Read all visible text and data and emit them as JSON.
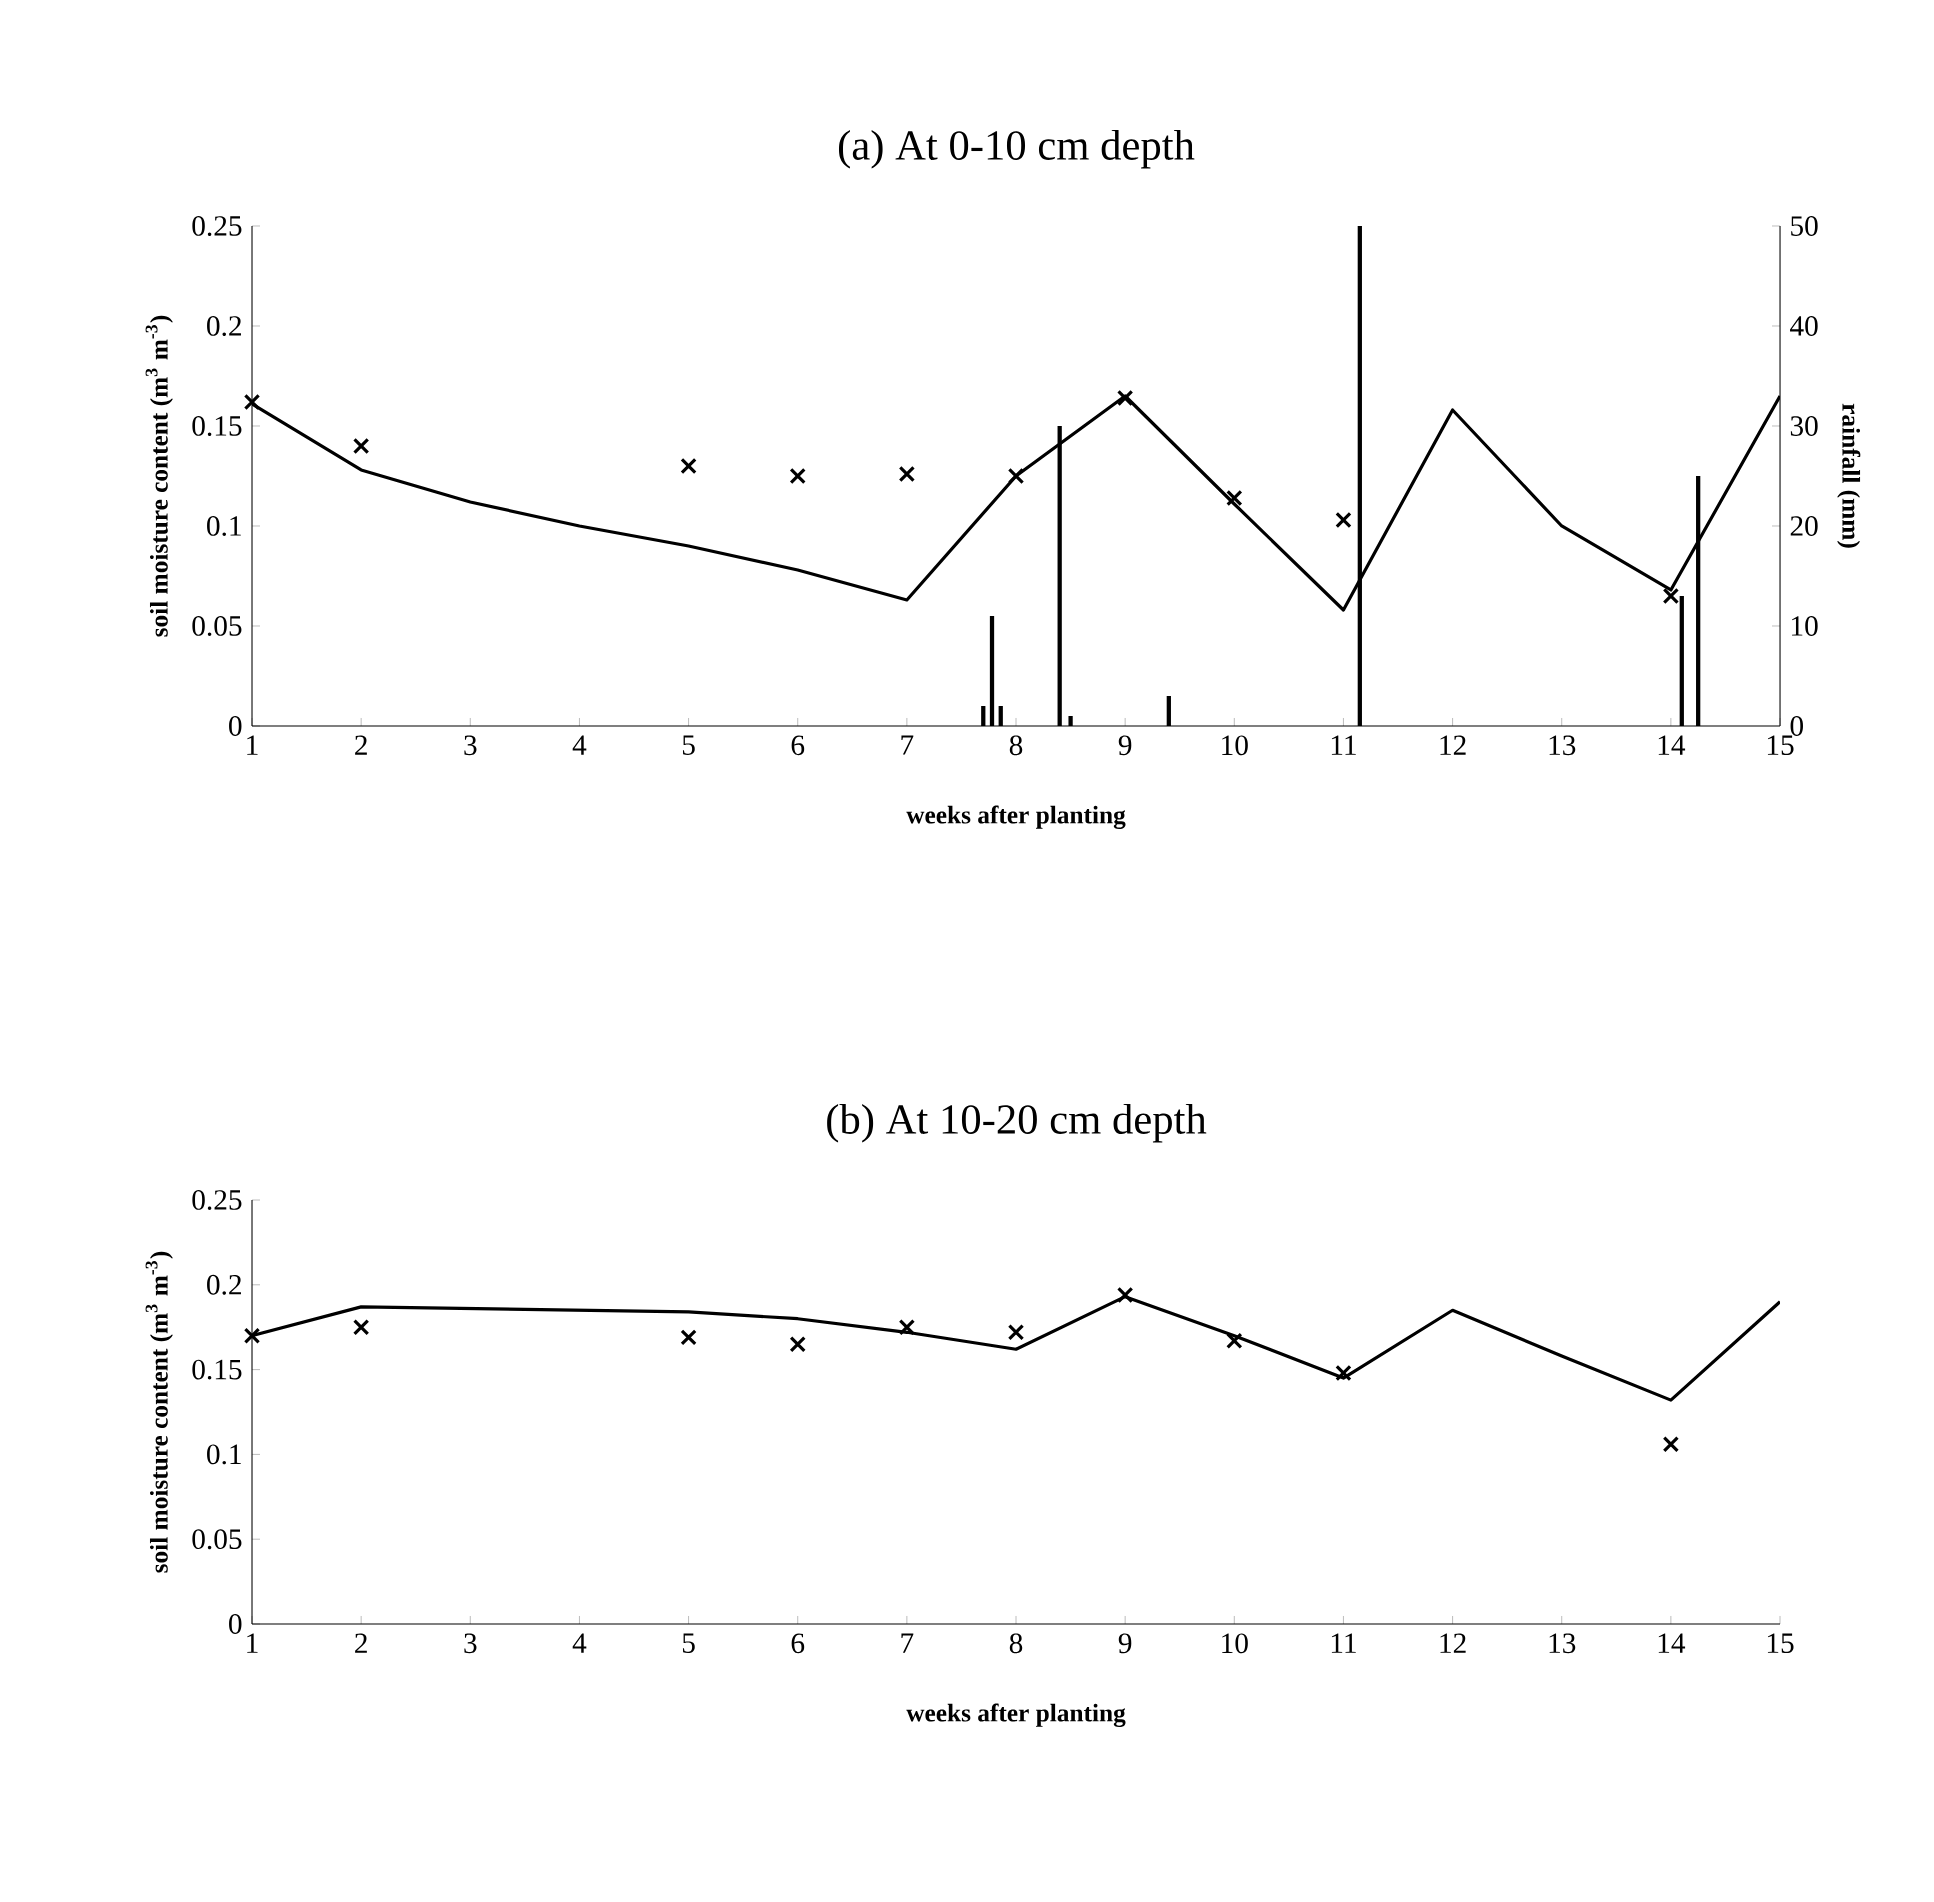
{
  "chart_data": [
    {
      "type": "line",
      "title": "(a) At 0-10 cm depth",
      "xlabel": "weeks after planting",
      "ylabel": "soil moisture content (m$^{3}$ m$^{-3}$)",
      "y2label": "rainfall (mm)",
      "xlim": [
        1,
        15
      ],
      "xticks": [
        1,
        2,
        3,
        4,
        5,
        6,
        7,
        8,
        9,
        10,
        11,
        12,
        13,
        14,
        15
      ],
      "ylim": [
        0,
        0.25
      ],
      "yticks": [
        0,
        0.05,
        0.1,
        0.15,
        0.2,
        0.25
      ],
      "y2lim": [
        0,
        50
      ],
      "y2ticks": [
        0,
        10,
        20,
        30,
        40,
        50
      ],
      "series": [
        {
          "type": "bar",
          "axis": "y2",
          "color": "#000000",
          "x": [
            7.7,
            7.78,
            7.86,
            8.4,
            8.5,
            9.4,
            11.15,
            14.1,
            14.25
          ],
          "values": [
            2,
            11,
            2,
            30,
            1,
            3,
            50,
            13,
            25
          ]
        },
        {
          "color": "#000000",
          "marker": "none",
          "line_style": "solid",
          "x": [
            1,
            2,
            3,
            4,
            5,
            6,
            7,
            8,
            9,
            10,
            11,
            12,
            13,
            14,
            15
          ],
          "values": [
            0.161,
            0.128,
            0.112,
            0.1,
            0.09,
            0.078,
            0.063,
            0.125,
            0.165,
            0.111,
            0.058,
            0.158,
            0.1,
            0.068,
            0.165
          ]
        },
        {
          "type": "scatter",
          "color": "#000000",
          "marker": "cross",
          "x": [
            1,
            2,
            5,
            6,
            7,
            8,
            9,
            10,
            11,
            14
          ],
          "values": [
            0.162,
            0.14,
            0.13,
            0.125,
            0.126,
            0.125,
            0.164,
            0.114,
            0.103,
            0.065
          ]
        }
      ]
    },
    {
      "type": "line",
      "title": "(b) At 10-20 cm depth",
      "xlabel": "weeks after planting",
      "ylabel": "soil moisture content (m$^{3}$ m$^{-3}$)",
      "xlim": [
        1,
        15
      ],
      "xticks": [
        1,
        2,
        3,
        4,
        5,
        6,
        7,
        8,
        9,
        10,
        11,
        12,
        13,
        14,
        15
      ],
      "ylim": [
        0,
        0.25
      ],
      "yticks": [
        0,
        0.05,
        0.1,
        0.15,
        0.2,
        0.25
      ],
      "series": [
        {
          "color": "#000000",
          "marker": "none",
          "line_style": "solid",
          "x": [
            1,
            2,
            5,
            6,
            7,
            8,
            9,
            10,
            11,
            12,
            13,
            14,
            15
          ],
          "values": [
            0.17,
            0.187,
            0.184,
            0.18,
            0.172,
            0.162,
            0.193,
            0.17,
            0.145,
            0.185,
            0.158,
            0.132,
            0.19
          ]
        },
        {
          "type": "scatter",
          "color": "#000000",
          "marker": "cross",
          "x": [
            1,
            2,
            5,
            6,
            7,
            8,
            9,
            10,
            11,
            14
          ],
          "values": [
            0.17,
            0.175,
            0.169,
            0.165,
            0.175,
            0.172,
            0.194,
            0.167,
            0.148,
            0.106
          ]
        }
      ]
    }
  ]
}
